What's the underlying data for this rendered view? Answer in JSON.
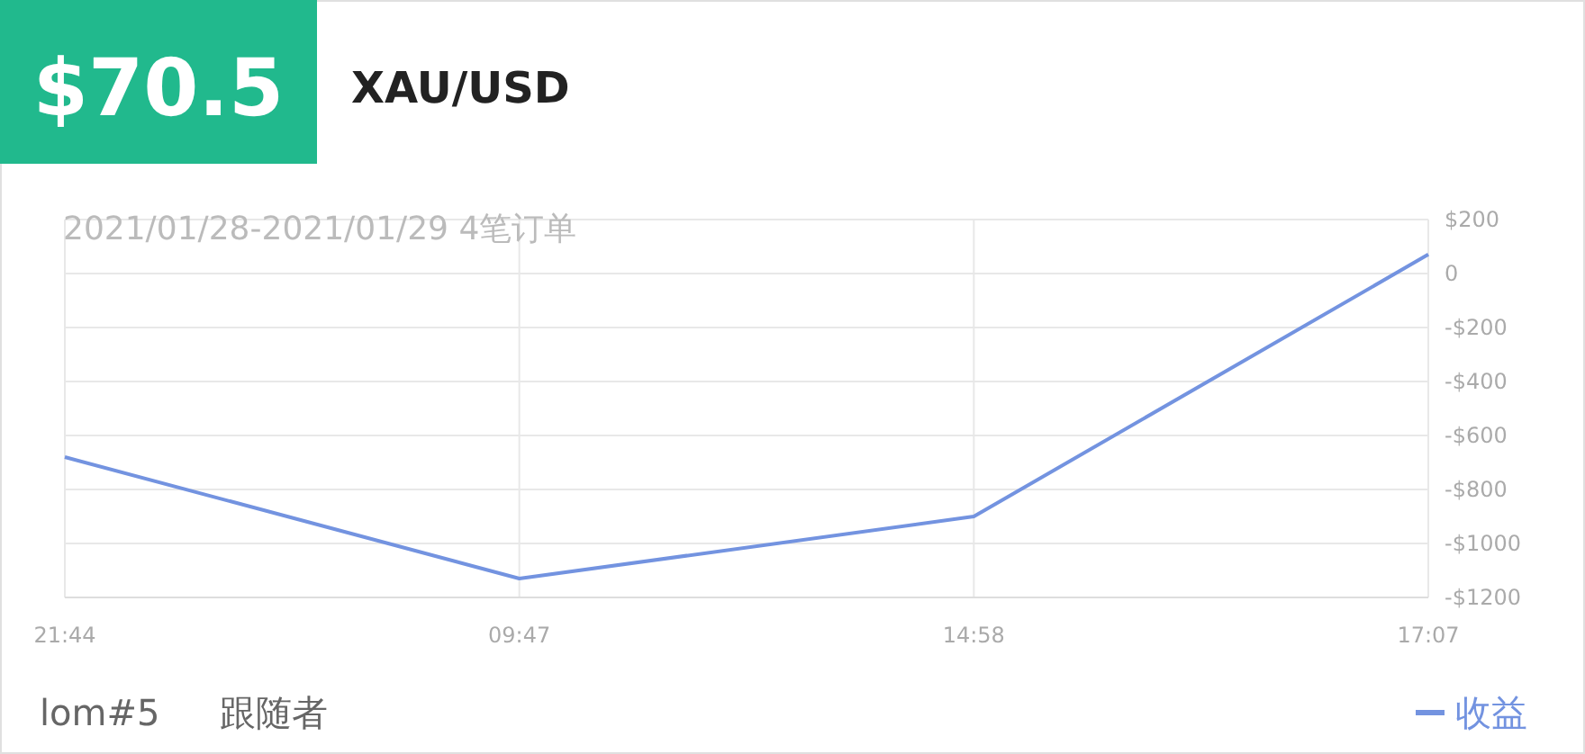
{
  "chart_data": {
    "type": "line",
    "title": "XAU/USD",
    "subtitle": "2021/01/28-2021/01/29 4笔订单",
    "annotations": [
      "$70.5",
      "lom#5",
      "跟随者"
    ],
    "categories": [
      "21:44",
      "09:47",
      "14:58",
      "17:07"
    ],
    "series": [
      {
        "name": "收益",
        "color": "#7393e0",
        "values": [
          -680,
          -1130,
          -900,
          70.5
        ]
      }
    ],
    "ylim": [
      -1200,
      200
    ],
    "yticks": [
      {
        "value": 200,
        "label": "$200"
      },
      0,
      {
        "value": -200,
        "label": "-$200"
      },
      {
        "value": -400,
        "label": "-$400"
      },
      {
        "value": -600,
        "label": "-$600"
      },
      {
        "value": -800,
        "label": "-$800"
      },
      {
        "value": -1000,
        "label": "-$1000"
      },
      {
        "value": -1200,
        "label": "-$1200"
      }
    ],
    "grid": true,
    "legend": "bottom right"
  }
}
